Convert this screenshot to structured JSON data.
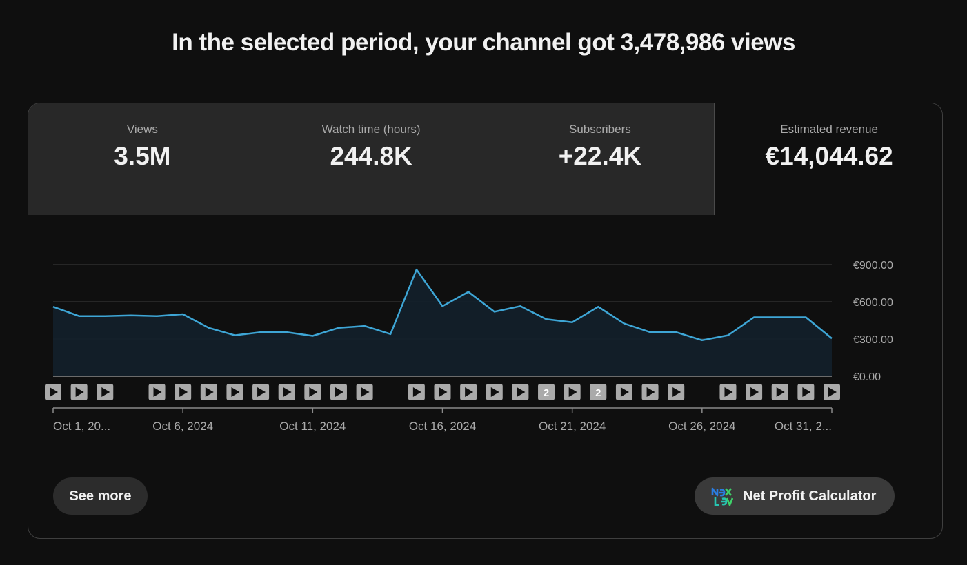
{
  "headline": "In the selected period, your channel got 3,478,986 views",
  "tabs": [
    {
      "label": "Views",
      "value": "3.5M",
      "active": false
    },
    {
      "label": "Watch time (hours)",
      "value": "244.8K",
      "active": false
    },
    {
      "label": "Subscribers",
      "value": "+22.4K",
      "active": false
    },
    {
      "label": "Estimated revenue",
      "value": "€14,044.62",
      "active": true
    }
  ],
  "chart_data": {
    "type": "area",
    "x": [
      "Oct 1",
      "Oct 2",
      "Oct 3",
      "Oct 4",
      "Oct 5",
      "Oct 6",
      "Oct 7",
      "Oct 8",
      "Oct 9",
      "Oct 10",
      "Oct 11",
      "Oct 12",
      "Oct 13",
      "Oct 14",
      "Oct 15",
      "Oct 16",
      "Oct 17",
      "Oct 18",
      "Oct 19",
      "Oct 20",
      "Oct 21",
      "Oct 22",
      "Oct 23",
      "Oct 24",
      "Oct 25",
      "Oct 26",
      "Oct 27",
      "Oct 28",
      "Oct 29",
      "Oct 30",
      "Oct 31"
    ],
    "series": [
      {
        "values": [
          560,
          485,
          485,
          490,
          485,
          500,
          390,
          330,
          355,
          355,
          325,
          390,
          405,
          340,
          860,
          565,
          680,
          520,
          565,
          460,
          435,
          560,
          425,
          355,
          355,
          290,
          330,
          475,
          475,
          475,
          305
        ]
      }
    ],
    "ylim": [
      0,
      900
    ],
    "y_ticks": [
      "€900.00",
      "€600.00",
      "€300.00",
      "€0.00"
    ],
    "y_tick_values": [
      900,
      600,
      300,
      0
    ],
    "x_tick_labels": [
      {
        "index": 0,
        "label": "Oct 1, 20..."
      },
      {
        "index": 5,
        "label": "Oct 6, 2024"
      },
      {
        "index": 10,
        "label": "Oct 11, 2024"
      },
      {
        "index": 15,
        "label": "Oct 16, 2024"
      },
      {
        "index": 20,
        "label": "Oct 21, 2024"
      },
      {
        "index": 25,
        "label": "Oct 26, 2024"
      },
      {
        "index": 30,
        "label": "Oct 31, 2..."
      }
    ],
    "video_markers": [
      {
        "index": 0,
        "count": ""
      },
      {
        "index": 1,
        "count": ""
      },
      {
        "index": 2,
        "count": ""
      },
      {
        "index": 4,
        "count": ""
      },
      {
        "index": 5,
        "count": ""
      },
      {
        "index": 6,
        "count": ""
      },
      {
        "index": 7,
        "count": ""
      },
      {
        "index": 8,
        "count": ""
      },
      {
        "index": 9,
        "count": ""
      },
      {
        "index": 10,
        "count": ""
      },
      {
        "index": 11,
        "count": ""
      },
      {
        "index": 12,
        "count": ""
      },
      {
        "index": 14,
        "count": ""
      },
      {
        "index": 15,
        "count": ""
      },
      {
        "index": 16,
        "count": ""
      },
      {
        "index": 17,
        "count": ""
      },
      {
        "index": 18,
        "count": ""
      },
      {
        "index": 19,
        "count": "2"
      },
      {
        "index": 20,
        "count": ""
      },
      {
        "index": 21,
        "count": "2"
      },
      {
        "index": 22,
        "count": ""
      },
      {
        "index": 23,
        "count": ""
      },
      {
        "index": 24,
        "count": ""
      },
      {
        "index": 26,
        "count": ""
      },
      {
        "index": 27,
        "count": ""
      },
      {
        "index": 28,
        "count": ""
      },
      {
        "index": 29,
        "count": ""
      },
      {
        "index": 30,
        "count": ""
      }
    ],
    "line_color": "#3ea6d6",
    "fill_color": "#13202a",
    "grid": true
  },
  "buttons": {
    "see_more": "See more",
    "calculator": "Net Profit Calculator",
    "calculator_icon": "nexlev-logo-icon"
  }
}
